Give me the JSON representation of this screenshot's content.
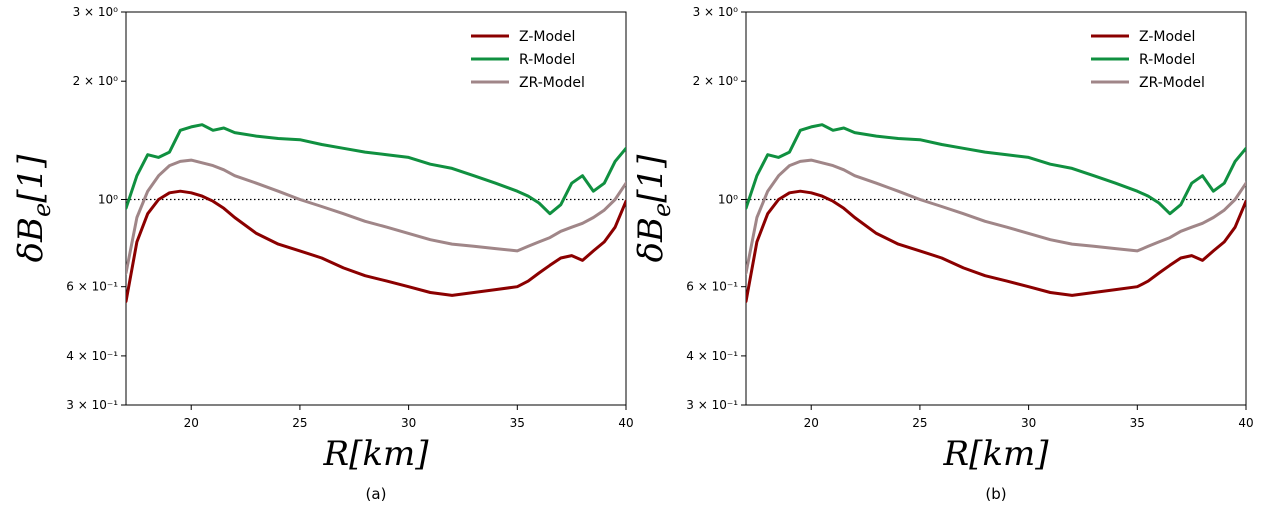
{
  "chart_data": [
    {
      "type": "line",
      "caption": "(a)",
      "xlabel": "R[km]",
      "ylabel": "δB_e[1]",
      "xlim": [
        17,
        40
      ],
      "ylim": [
        0.3,
        3.0
      ],
      "yscale": "log",
      "xticks": [
        20,
        25,
        30,
        35,
        40
      ],
      "yticks": [
        {
          "value": 3.0,
          "label": "3 × 10⁰"
        },
        {
          "value": 2.0,
          "label": "2 × 10⁰"
        },
        {
          "value": 1.0,
          "label": "10⁰"
        },
        {
          "value": 0.6,
          "label": "6 × 10⁻¹"
        },
        {
          "value": 0.4,
          "label": "4 × 10⁻¹"
        },
        {
          "value": 0.3,
          "label": "3 × 10⁻¹"
        }
      ],
      "reference_line": {
        "y": 1.0,
        "style": "dotted"
      },
      "legend_position": "top-right",
      "x": [
        17.0,
        17.5,
        18.0,
        18.5,
        19.0,
        19.5,
        20.0,
        20.5,
        21.0,
        21.5,
        22.0,
        23.0,
        24.0,
        25.0,
        26.0,
        27.0,
        28.0,
        29.0,
        30.0,
        31.0,
        32.0,
        33.0,
        34.0,
        35.0,
        35.5,
        36.0,
        36.5,
        37.0,
        37.5,
        38.0,
        38.5,
        39.0,
        39.5,
        40.0
      ],
      "series": [
        {
          "name": "Z-Model",
          "color": "#8b0000",
          "values": [
            0.55,
            0.78,
            0.92,
            1.0,
            1.04,
            1.05,
            1.04,
            1.02,
            0.99,
            0.95,
            0.9,
            0.82,
            0.77,
            0.74,
            0.71,
            0.67,
            0.64,
            0.62,
            0.6,
            0.58,
            0.57,
            0.58,
            0.59,
            0.6,
            0.62,
            0.65,
            0.68,
            0.71,
            0.72,
            0.7,
            0.74,
            0.78,
            0.85,
            0.99
          ]
        },
        {
          "name": "R-Model",
          "color": "#109040",
          "values": [
            0.95,
            1.15,
            1.3,
            1.28,
            1.32,
            1.5,
            1.53,
            1.55,
            1.5,
            1.52,
            1.48,
            1.45,
            1.43,
            1.42,
            1.38,
            1.35,
            1.32,
            1.3,
            1.28,
            1.23,
            1.2,
            1.15,
            1.1,
            1.05,
            1.02,
            0.98,
            0.92,
            0.97,
            1.1,
            1.15,
            1.05,
            1.1,
            1.25,
            1.35
          ]
        },
        {
          "name": "ZR-Model",
          "color": "#a08688",
          "values": [
            0.65,
            0.9,
            1.05,
            1.15,
            1.22,
            1.25,
            1.26,
            1.24,
            1.22,
            1.19,
            1.15,
            1.1,
            1.05,
            1.0,
            0.96,
            0.92,
            0.88,
            0.85,
            0.82,
            0.79,
            0.77,
            0.76,
            0.75,
            0.74,
            0.76,
            0.78,
            0.8,
            0.83,
            0.85,
            0.87,
            0.9,
            0.94,
            1.0,
            1.1
          ]
        }
      ]
    },
    {
      "type": "line",
      "caption": "(b)",
      "xlabel": "R[km]",
      "ylabel": "δB_e[1]",
      "xlim": [
        17,
        40
      ],
      "ylim": [
        0.3,
        3.0
      ],
      "yscale": "log",
      "xticks": [
        20,
        25,
        30,
        35,
        40
      ],
      "yticks": [
        {
          "value": 3.0,
          "label": "3 × 10⁰"
        },
        {
          "value": 2.0,
          "label": "2 × 10⁰"
        },
        {
          "value": 1.0,
          "label": "10⁰"
        },
        {
          "value": 0.6,
          "label": "6 × 10⁻¹"
        },
        {
          "value": 0.4,
          "label": "4 × 10⁻¹"
        },
        {
          "value": 0.3,
          "label": "3 × 10⁻¹"
        }
      ],
      "reference_line": {
        "y": 1.0,
        "style": "dotted"
      },
      "legend_position": "top-right",
      "x": [
        17.0,
        17.5,
        18.0,
        18.5,
        19.0,
        19.5,
        20.0,
        20.5,
        21.0,
        21.5,
        22.0,
        23.0,
        24.0,
        25.0,
        26.0,
        27.0,
        28.0,
        29.0,
        30.0,
        31.0,
        32.0,
        33.0,
        34.0,
        35.0,
        35.5,
        36.0,
        36.5,
        37.0,
        37.5,
        38.0,
        38.5,
        39.0,
        39.5,
        40.0
      ],
      "series": [
        {
          "name": "Z-Model",
          "color": "#8b0000",
          "values": [
            0.55,
            0.78,
            0.92,
            1.0,
            1.04,
            1.05,
            1.04,
            1.02,
            0.99,
            0.95,
            0.9,
            0.82,
            0.77,
            0.74,
            0.71,
            0.67,
            0.64,
            0.62,
            0.6,
            0.58,
            0.57,
            0.58,
            0.59,
            0.6,
            0.62,
            0.65,
            0.68,
            0.71,
            0.72,
            0.7,
            0.74,
            0.78,
            0.85,
            0.99
          ]
        },
        {
          "name": "R-Model",
          "color": "#109040",
          "values": [
            0.95,
            1.15,
            1.3,
            1.28,
            1.32,
            1.5,
            1.53,
            1.55,
            1.5,
            1.52,
            1.48,
            1.45,
            1.43,
            1.42,
            1.38,
            1.35,
            1.32,
            1.3,
            1.28,
            1.23,
            1.2,
            1.15,
            1.1,
            1.05,
            1.02,
            0.98,
            0.92,
            0.97,
            1.1,
            1.15,
            1.05,
            1.1,
            1.25,
            1.35
          ]
        },
        {
          "name": "ZR-Model",
          "color": "#a08688",
          "values": [
            0.65,
            0.9,
            1.05,
            1.15,
            1.22,
            1.25,
            1.26,
            1.24,
            1.22,
            1.19,
            1.15,
            1.1,
            1.05,
            1.0,
            0.96,
            0.92,
            0.88,
            0.85,
            0.82,
            0.79,
            0.77,
            0.76,
            0.75,
            0.74,
            0.76,
            0.78,
            0.8,
            0.83,
            0.85,
            0.87,
            0.9,
            0.94,
            1.0,
            1.1
          ]
        }
      ]
    }
  ]
}
